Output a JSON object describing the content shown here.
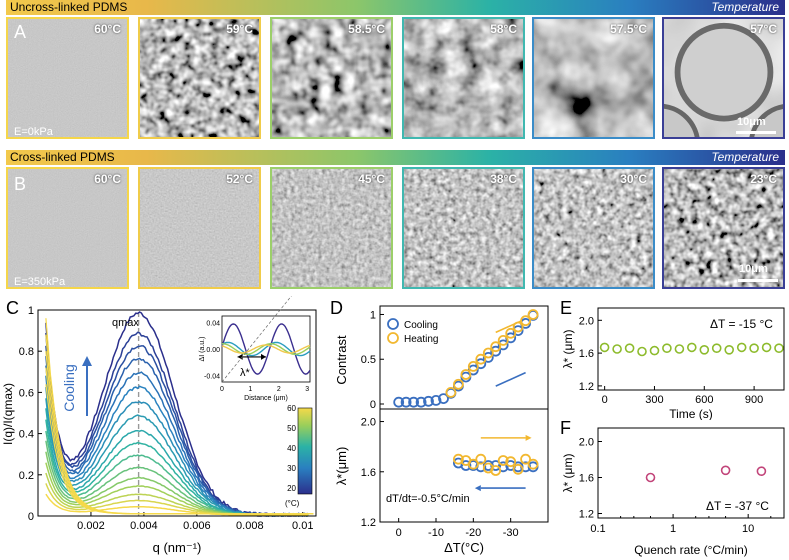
{
  "row_a": {
    "bar_label": "Uncross-linked PDMS",
    "bar_right": "Temperature",
    "panel_label": "A",
    "modulus": "E=0kPa",
    "scale": "10μm",
    "temps": [
      "60°C",
      "59°C",
      "58.5°C",
      "58°C",
      "57.5°C",
      "57°C"
    ]
  },
  "row_b": {
    "bar_label": "Cross-linked PDMS",
    "bar_right": "Temperature",
    "panel_label": "B",
    "modulus": "E=350kPa",
    "scale": "10μm",
    "temps": [
      "60°C",
      "52°C",
      "45°C",
      "38°C",
      "30°C",
      "23°C"
    ]
  },
  "panel_c": {
    "label": "C",
    "ylabel": "I(q)/I(qmax)",
    "xlabel": "q (nm⁻¹)",
    "qmax": "qmax",
    "cooling": "Cooling",
    "inset_ylabel": "ΔI (a.u.)",
    "inset_xlabel": "Distance (μm)",
    "inset_lambda": "λ*",
    "colorbar_unit": "(°C)",
    "colorbar_ticks": [
      "60",
      "50",
      "40",
      "30",
      "20"
    ]
  },
  "panel_d": {
    "label": "D",
    "ylabel_top": "Contrast",
    "ylabel_bottom": "λ*(μm)",
    "xlabel": "ΔT(°C)",
    "legend": [
      "Cooling",
      "Heating"
    ],
    "annotation": "dT/dt=-0.5°C/min"
  },
  "panel_e": {
    "label": "E",
    "ylabel": "λ* (μm)",
    "xlabel": "Time (s)",
    "annotation": "ΔT = -15 °C"
  },
  "panel_f": {
    "label": "F",
    "ylabel": "λ* (μm)",
    "xlabel": "Quench rate (°C/min)",
    "annotation": "ΔT = -37 °C"
  },
  "colors": {
    "cooling": "#3a6fc0",
    "heating": "#f2b830",
    "green": "#8dbb2c",
    "pink": "#c2457a",
    "frame": [
      "#f5d64a",
      "#f0cc4a",
      "#9ccf6a",
      "#40b8b0",
      "#3a8cc8",
      "#3a3f96"
    ]
  },
  "chart_data": [
    {
      "type": "line",
      "id": "C",
      "title": "",
      "xlabel": "q (nm⁻¹)",
      "ylabel": "I(q)/I(qmax)",
      "xlim": [
        0,
        0.0105
      ],
      "ylim": [
        0,
        1.0
      ],
      "xticks": [
        0.002,
        0.004,
        0.006,
        0.008,
        0.01
      ],
      "yticks": [
        0,
        0.2,
        0.4,
        0.6,
        0.8,
        1
      ],
      "qmax": 0.0038,
      "series_peaks": [
        0.98,
        0.88,
        0.82,
        0.76,
        0.69,
        0.62,
        0.55,
        0.48,
        0.41,
        0.35,
        0.29,
        0.23,
        0.18,
        0.14,
        0.1,
        0.07,
        0.04
      ]
    },
    {
      "type": "scatter",
      "id": "D-top",
      "xlabel": "ΔT(°C)",
      "ylabel": "Contrast",
      "xlim": [
        5,
        -40
      ],
      "ylim": [
        0,
        1.05
      ],
      "yticks": [
        0,
        0.5,
        1
      ],
      "series": [
        {
          "name": "Cooling",
          "x": [
            0,
            -2,
            -4,
            -6,
            -8,
            -10,
            -12,
            -14,
            -16,
            -18,
            -20,
            -22,
            -24,
            -26,
            -28,
            -30,
            -32,
            -34,
            -36
          ],
          "values": [
            0.02,
            0.02,
            0.02,
            0.02,
            0.03,
            0.04,
            0.06,
            0.12,
            0.2,
            0.3,
            0.38,
            0.45,
            0.52,
            0.59,
            0.66,
            0.74,
            0.82,
            0.9,
            0.99
          ]
        },
        {
          "name": "Heating",
          "x": [
            -14,
            -16,
            -18,
            -20,
            -22,
            -24,
            -26,
            -28,
            -30,
            -32,
            -34,
            -36
          ],
          "values": [
            0.13,
            0.22,
            0.33,
            0.42,
            0.5,
            0.57,
            0.64,
            0.71,
            0.79,
            0.86,
            0.93,
            1.0
          ]
        }
      ]
    },
    {
      "type": "scatter",
      "id": "D-bottom",
      "xlabel": "ΔT(°C)",
      "ylabel": "λ*(μm)",
      "xlim": [
        5,
        -40
      ],
      "ylim": [
        1.2,
        2.1
      ],
      "xticks": [
        0,
        -10,
        -20,
        -30
      ],
      "yticks": [
        1.2,
        1.6,
        2.0
      ],
      "series": [
        {
          "name": "Cooling",
          "x": [
            -16,
            -18,
            -20,
            -22,
            -24,
            -26,
            -28,
            -30,
            -32,
            -34,
            -36
          ],
          "values": [
            1.67,
            1.65,
            1.65,
            1.64,
            1.65,
            1.65,
            1.64,
            1.65,
            1.64,
            1.64,
            1.64
          ]
        },
        {
          "name": "Heating",
          "x": [
            -16,
            -18,
            -20,
            -22,
            -24,
            -26,
            -28,
            -30,
            -32,
            -34,
            -36
          ],
          "values": [
            1.7,
            1.69,
            1.66,
            1.7,
            1.63,
            1.61,
            1.69,
            1.68,
            1.62,
            1.7,
            1.66
          ]
        }
      ]
    },
    {
      "type": "scatter",
      "id": "E",
      "xlabel": "Time (s)",
      "ylabel": "λ* (μm)",
      "xlim": [
        -40,
        1080
      ],
      "ylim": [
        1.15,
        2.15
      ],
      "xticks": [
        0,
        300,
        600,
        900
      ],
      "yticks": [
        1.2,
        1.6,
        2.0
      ],
      "x": [
        0,
        75,
        150,
        225,
        300,
        375,
        450,
        525,
        600,
        675,
        750,
        825,
        900,
        975,
        1050
      ],
      "values": [
        1.67,
        1.65,
        1.66,
        1.62,
        1.63,
        1.66,
        1.65,
        1.67,
        1.64,
        1.66,
        1.64,
        1.67,
        1.66,
        1.67,
        1.66
      ]
    },
    {
      "type": "scatter",
      "id": "F",
      "xscale": "log",
      "xlabel": "Quench rate (°C/min)",
      "ylabel": "λ* (μm)",
      "xlim": [
        0.1,
        30
      ],
      "ylim": [
        1.15,
        2.15
      ],
      "xticks": [
        0.1,
        1,
        10
      ],
      "yticks": [
        1.2,
        1.6,
        2.0
      ],
      "x": [
        0.5,
        5,
        15
      ],
      "values": [
        1.6,
        1.68,
        1.67
      ]
    }
  ]
}
